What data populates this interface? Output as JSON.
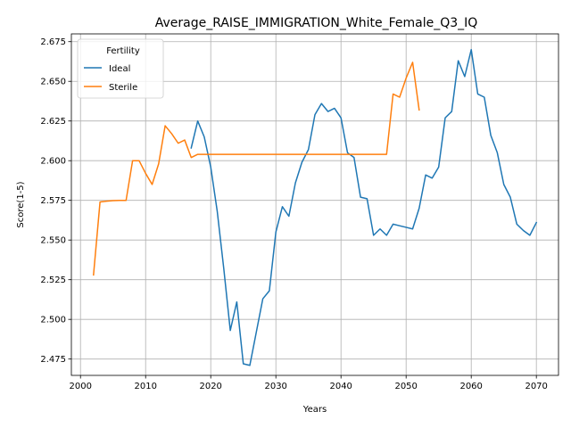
{
  "chart_data": {
    "type": "line",
    "title": "Average_RAISE_IMMIGRATION_White_Female_Q3_IQ",
    "xlabel": "Years",
    "ylabel": "Score(1-5)",
    "xlim": [
      1998.6,
      2073.4
    ],
    "ylim": [
      2.4647,
      2.6799
    ],
    "x_ticks": [
      2000,
      2010,
      2020,
      2030,
      2040,
      2050,
      2060,
      2070
    ],
    "y_ticks": [
      2.475,
      2.5,
      2.525,
      2.55,
      2.575,
      2.6,
      2.625,
      2.65,
      2.675
    ],
    "x_tick_labels": [
      "2000",
      "2010",
      "2020",
      "2030",
      "2040",
      "2050",
      "2060",
      "2070"
    ],
    "y_tick_labels": [
      "2.475",
      "2.500",
      "2.525",
      "2.550",
      "2.575",
      "2.600",
      "2.625",
      "2.650",
      "2.675"
    ],
    "grid": true,
    "legend": {
      "title": "Fertility",
      "position": "upper left"
    },
    "series": [
      {
        "name": "Ideal",
        "color": "#1f77b4",
        "x": [
          2017,
          2018,
          2019,
          2020,
          2021,
          2022,
          2023,
          2024,
          2025,
          2026,
          2027,
          2028,
          2029,
          2030,
          2031,
          2032,
          2033,
          2034,
          2035,
          2036,
          2037,
          2038,
          2039,
          2040,
          2041,
          2042,
          2043,
          2044,
          2045,
          2046,
          2047,
          2048,
          2049,
          2050,
          2051,
          2052,
          2053,
          2054,
          2055,
          2056,
          2057,
          2058,
          2059,
          2060,
          2061,
          2062,
          2063,
          2064,
          2065,
          2066,
          2067,
          2068,
          2069,
          2070
        ],
        "y": [
          2.608,
          2.625,
          2.615,
          2.596,
          2.568,
          2.532,
          2.493,
          2.511,
          2.472,
          2.471,
          2.492,
          2.513,
          2.518,
          2.555,
          2.571,
          2.565,
          2.586,
          2.599,
          2.607,
          2.629,
          2.636,
          2.631,
          2.633,
          2.627,
          2.605,
          2.602,
          2.577,
          2.576,
          2.553,
          2.557,
          2.553,
          2.56,
          2.559,
          2.558,
          2.557,
          2.57,
          2.591,
          2.589,
          2.596,
          2.627,
          2.631,
          2.663,
          2.653,
          2.67,
          2.642,
          2.64,
          2.616,
          2.605,
          2.585,
          2.577,
          2.56,
          2.556,
          2.553,
          2.561
        ]
      },
      {
        "name": "Sterile",
        "color": "#ff7f0e",
        "x": [
          2002,
          2003,
          2004,
          2005,
          2006,
          2007,
          2008,
          2009,
          2010,
          2011,
          2012,
          2013,
          2014,
          2015,
          2016,
          2017,
          2018,
          2019,
          2020,
          2021,
          2022,
          2023,
          2024,
          2025,
          2026,
          2027,
          2028,
          2029,
          2030,
          2031,
          2032,
          2033,
          2034,
          2035,
          2036,
          2037,
          2038,
          2039,
          2040,
          2041,
          2042,
          2043,
          2044,
          2045,
          2046,
          2047,
          2048,
          2049,
          2050,
          2051,
          2052
        ],
        "y": [
          2.528,
          2.574,
          2.5745,
          2.5748,
          2.575,
          2.575,
          2.6,
          2.6,
          2.592,
          2.585,
          2.598,
          2.622,
          2.617,
          2.611,
          2.613,
          2.602,
          2.604,
          2.604,
          2.604,
          2.604,
          2.604,
          2.604,
          2.604,
          2.604,
          2.604,
          2.604,
          2.604,
          2.604,
          2.604,
          2.604,
          2.604,
          2.604,
          2.604,
          2.604,
          2.604,
          2.604,
          2.604,
          2.604,
          2.604,
          2.604,
          2.604,
          2.604,
          2.604,
          2.604,
          2.604,
          2.604,
          2.642,
          2.64,
          2.652,
          2.662,
          2.632
        ]
      }
    ]
  }
}
